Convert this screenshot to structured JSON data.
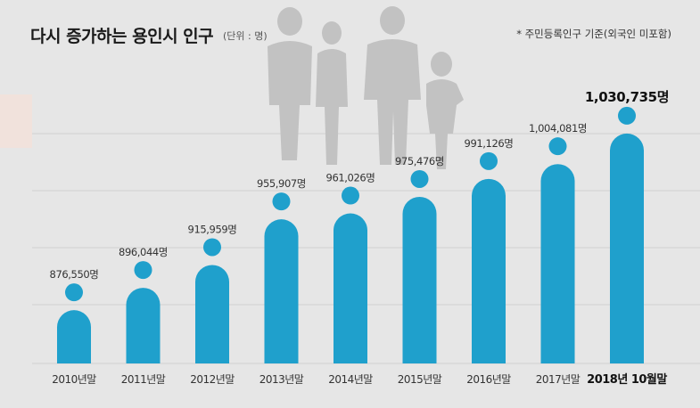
{
  "header": {
    "title": "다시 증가하는 용인시 인구",
    "unit": "(단위 : 명)",
    "note": "* 주민등록인구 기준(외국인 미포함)"
  },
  "colors": {
    "background": "#e6e6e6",
    "bar": "#1fa0cc",
    "grid": "#d0d0d0",
    "silhouette": "#c2c2c2",
    "side_tab": "#f1e2dc",
    "label_text": "#333333",
    "highlight_text": "#111111"
  },
  "chart_data": {
    "type": "bar",
    "categories": [
      "2010년말",
      "2011년말",
      "2012년말",
      "2013년말",
      "2014년말",
      "2015년말",
      "2016년말",
      "2017년말",
      "2018년 10월말"
    ],
    "values": [
      876550,
      896044,
      915959,
      955907,
      961026,
      975476,
      991126,
      1004081,
      1030735
    ],
    "value_labels": [
      "876,550명",
      "896,044명",
      "915,959명",
      "955,907명",
      "961,026명",
      "975,476명",
      "991,126명",
      "1,004,081명",
      "1,030,735명"
    ],
    "highlight_index": 8,
    "title": "다시 증가하는 용인시 인구",
    "unit": "(단위 : 명)",
    "note": "* 주민등록인구 기준(외국인 미포함)",
    "ylim": [
      830000,
      1040000
    ],
    "grid": true,
    "style": "people-bars"
  }
}
